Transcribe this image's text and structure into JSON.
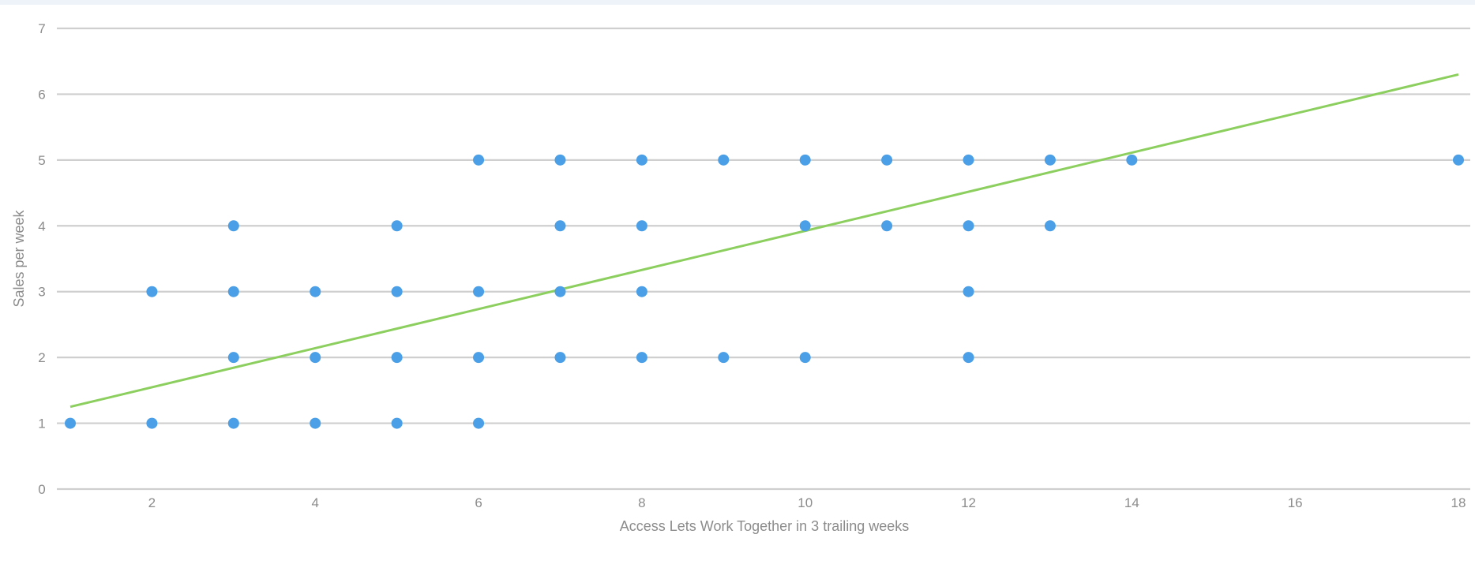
{
  "chart_data": {
    "type": "scatter",
    "title": "",
    "xlabel": "Access Lets Work Together in 3 trailing weeks",
    "ylabel": "Sales per week",
    "xlim": [
      1,
      18
    ],
    "ylim": [
      0,
      7
    ],
    "x_ticks": [
      2,
      4,
      6,
      8,
      10,
      12,
      14,
      16,
      18
    ],
    "y_ticks": [
      0,
      1,
      2,
      3,
      4,
      5,
      6,
      7
    ],
    "grid": "horizontal",
    "legend": "none",
    "colors": {
      "points": "#4a9fe6",
      "trendline": "#8ccf5f",
      "grid": "#cfcfcf",
      "text": "#8c8c8c"
    },
    "series": [
      {
        "points": [
          [
            1,
            1
          ],
          [
            2,
            1
          ],
          [
            3,
            1
          ],
          [
            4,
            1
          ],
          [
            5,
            1
          ],
          [
            6,
            1
          ],
          [
            3,
            2
          ],
          [
            4,
            2
          ],
          [
            5,
            2
          ],
          [
            6,
            2
          ],
          [
            7,
            2
          ],
          [
            8,
            2
          ],
          [
            9,
            2
          ],
          [
            10,
            2
          ],
          [
            12,
            2
          ],
          [
            2,
            3
          ],
          [
            3,
            3
          ],
          [
            4,
            3
          ],
          [
            5,
            3
          ],
          [
            6,
            3
          ],
          [
            7,
            3
          ],
          [
            8,
            3
          ],
          [
            12,
            3
          ],
          [
            3,
            4
          ],
          [
            5,
            4
          ],
          [
            7,
            4
          ],
          [
            8,
            4
          ],
          [
            10,
            4
          ],
          [
            11,
            4
          ],
          [
            12,
            4
          ],
          [
            13,
            4
          ],
          [
            6,
            5
          ],
          [
            7,
            5
          ],
          [
            8,
            5
          ],
          [
            9,
            5
          ],
          [
            10,
            5
          ],
          [
            11,
            5
          ],
          [
            12,
            5
          ],
          [
            13,
            5
          ],
          [
            14,
            5
          ],
          [
            18,
            5
          ]
        ]
      }
    ],
    "trendline": {
      "start": [
        1,
        1.25
      ],
      "end": [
        18,
        6.3
      ]
    }
  }
}
